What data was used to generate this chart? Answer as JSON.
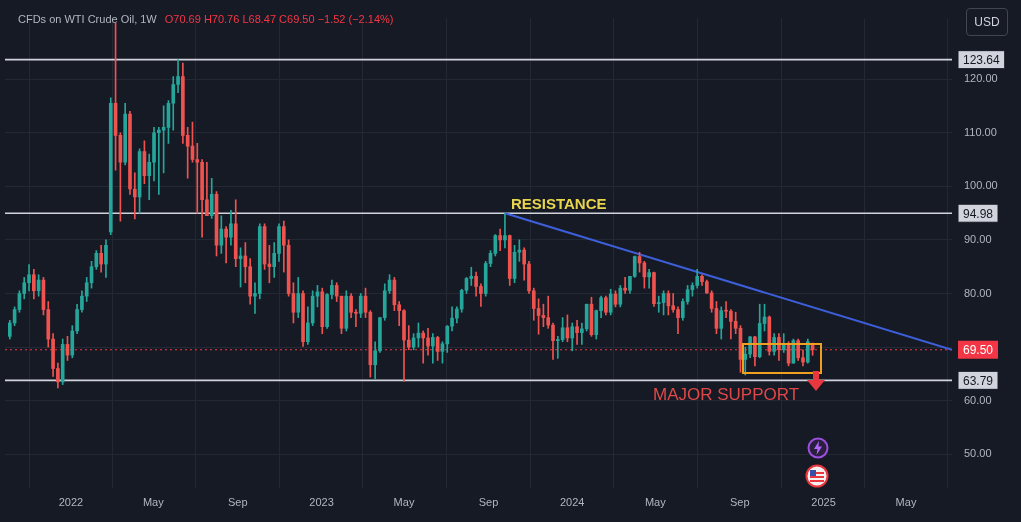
{
  "chart_data": {
    "type": "candlestick",
    "title": "CFDs on WTI Crude Oil, 1W",
    "subtitle": "O70.69 H70.76 L68.47 C69.50 −1.52 (−2.14%)",
    "ylabel": "USD",
    "x": [
      "2021-10-04",
      "2021-10-11",
      "2021-10-18",
      "2021-10-25",
      "2021-11-01",
      "2021-11-08",
      "2021-11-15",
      "2021-11-22",
      "2021-11-29",
      "2021-12-06",
      "2021-12-13",
      "2021-12-20",
      "2021-12-27",
      "2022-01-03",
      "2022-01-10",
      "2022-01-17",
      "2022-01-24",
      "2022-01-31",
      "2022-02-07",
      "2022-02-14",
      "2022-02-21",
      "2022-02-28",
      "2022-03-07",
      "2022-03-14",
      "2022-03-21",
      "2022-03-28",
      "2022-04-04",
      "2022-04-11",
      "2022-04-18",
      "2022-04-25",
      "2022-05-02",
      "2022-05-09",
      "2022-05-16",
      "2022-05-23",
      "2022-05-30",
      "2022-06-06",
      "2022-06-13",
      "2022-06-20",
      "2022-06-27",
      "2022-07-04",
      "2022-07-11",
      "2022-07-18",
      "2022-07-25",
      "2022-08-01",
      "2022-08-08",
      "2022-08-15",
      "2022-08-22",
      "2022-08-29",
      "2022-09-05",
      "2022-09-12",
      "2022-09-19",
      "2022-09-26",
      "2022-10-03",
      "2022-10-10",
      "2022-10-17",
      "2022-10-24",
      "2022-10-31",
      "2022-11-07",
      "2022-11-14",
      "2022-11-21",
      "2022-11-28",
      "2022-12-05",
      "2022-12-12",
      "2022-12-19",
      "2022-12-26",
      "2023-01-02",
      "2023-01-09",
      "2023-01-16",
      "2023-01-23",
      "2023-01-30",
      "2023-02-06",
      "2023-02-13",
      "2023-02-20",
      "2023-02-27",
      "2023-03-06",
      "2023-03-13",
      "2023-03-20",
      "2023-03-27",
      "2023-04-03",
      "2023-04-10",
      "2023-04-17",
      "2023-04-24",
      "2023-05-01",
      "2023-05-08",
      "2023-05-15",
      "2023-05-22",
      "2023-05-29",
      "2023-06-05",
      "2023-06-12",
      "2023-06-19",
      "2023-06-26",
      "2023-07-03",
      "2023-07-10",
      "2023-07-17",
      "2023-07-24",
      "2023-07-31",
      "2023-08-07",
      "2023-08-14",
      "2023-08-21",
      "2023-08-28",
      "2023-09-04",
      "2023-09-11",
      "2023-09-18",
      "2023-09-25",
      "2023-10-02",
      "2023-10-09",
      "2023-10-16",
      "2023-10-23",
      "2023-10-30",
      "2023-11-06",
      "2023-11-13",
      "2023-11-20",
      "2023-11-27",
      "2023-12-04",
      "2023-12-11",
      "2023-12-18",
      "2023-12-25",
      "2024-01-01",
      "2024-01-08",
      "2024-01-15",
      "2024-01-22",
      "2024-01-29",
      "2024-02-05",
      "2024-02-12",
      "2024-02-19",
      "2024-02-26",
      "2024-03-04",
      "2024-03-11",
      "2024-03-18",
      "2024-03-25",
      "2024-04-01",
      "2024-04-08",
      "2024-04-15",
      "2024-04-22",
      "2024-04-29",
      "2024-05-06",
      "2024-05-13",
      "2024-05-20",
      "2024-05-27",
      "2024-06-03",
      "2024-06-10",
      "2024-06-17",
      "2024-06-24",
      "2024-07-01",
      "2024-07-08",
      "2024-07-15",
      "2024-07-22",
      "2024-07-29",
      "2024-08-05",
      "2024-08-12",
      "2024-08-19",
      "2024-08-26",
      "2024-09-02",
      "2024-09-09",
      "2024-09-16",
      "2024-09-23",
      "2024-09-30",
      "2024-10-07",
      "2024-10-14",
      "2024-10-21",
      "2024-10-28",
      "2024-11-04",
      "2024-11-11",
      "2024-11-18",
      "2024-11-25",
      "2024-12-02",
      "2024-12-09",
      "2024-12-16"
    ],
    "ohlc": [
      [
        72.0,
        75.0,
        71.5,
        74.5
      ],
      [
        74.5,
        77.5,
        74.0,
        77.0
      ],
      [
        77.0,
        80.5,
        76.5,
        80.0
      ],
      [
        80.0,
        83.0,
        79.0,
        82.0
      ],
      [
        82.0,
        85.4,
        80.5,
        83.5
      ],
      [
        83.5,
        84.5,
        79.0,
        80.5
      ],
      [
        80.5,
        83.5,
        79.5,
        82.5
      ],
      [
        82.5,
        83.0,
        76.0,
        77.0
      ],
      [
        77.0,
        78.5,
        70.0,
        71.5
      ],
      [
        71.5,
        72.5,
        64.5,
        66.0
      ],
      [
        66.0,
        67.0,
        62.4,
        63.5
      ],
      [
        63.5,
        71.5,
        63.0,
        70.5
      ],
      [
        70.5,
        72.0,
        67.5,
        68.5
      ],
      [
        68.5,
        74.0,
        68.0,
        73.0
      ],
      [
        73.0,
        78.0,
        72.5,
        77.0
      ],
      [
        77.0,
        80.5,
        76.5,
        79.5
      ],
      [
        79.5,
        83.0,
        78.5,
        82.0
      ],
      [
        82.0,
        86.0,
        81.0,
        85.0
      ],
      [
        85.0,
        88.0,
        84.5,
        87.5
      ],
      [
        87.5,
        89.0,
        84.0,
        85.5
      ],
      [
        85.5,
        90.0,
        83.0,
        89.0
      ],
      [
        91.5,
        116.5,
        91.0,
        115.5
      ],
      [
        115.5,
        130.5,
        103.0,
        109.5
      ],
      [
        109.5,
        110.0,
        93.5,
        104.5
      ],
      [
        104.5,
        115.5,
        104.0,
        113.5
      ],
      [
        113.5,
        114.0,
        98.5,
        99.5
      ],
      [
        99.5,
        102.5,
        93.9,
        98.0
      ],
      [
        98.0,
        107.0,
        95.0,
        106.5
      ],
      [
        106.5,
        108.5,
        100.5,
        102.0
      ],
      [
        102.0,
        106.0,
        97.5,
        104.5
      ],
      [
        104.5,
        111.0,
        101.0,
        110.0
      ],
      [
        110.0,
        111.0,
        98.5,
        110.5
      ],
      [
        110.5,
        115.0,
        102.5,
        111.0
      ],
      [
        111.0,
        116.0,
        108.0,
        115.5
      ],
      [
        115.5,
        120.5,
        110.5,
        119.0
      ],
      [
        119.0,
        123.64,
        117.5,
        120.5
      ],
      [
        120.5,
        123.0,
        108.0,
        109.5
      ],
      [
        109.5,
        111.0,
        101.5,
        107.5
      ],
      [
        107.5,
        112.0,
        104.5,
        105.0
      ],
      [
        105.0,
        108.0,
        95.0,
        104.5
      ],
      [
        104.5,
        105.0,
        90.5,
        97.5
      ],
      [
        97.5,
        104.5,
        94.5,
        94.5
      ],
      [
        94.5,
        101.5,
        94.0,
        98.5
      ],
      [
        98.5,
        99.0,
        87.0,
        89.0
      ],
      [
        89.0,
        94.5,
        87.5,
        92.0
      ],
      [
        92.0,
        92.5,
        85.7,
        90.5
      ],
      [
        90.5,
        95.5,
        89.0,
        93.0
      ],
      [
        93.0,
        97.5,
        85.0,
        86.5
      ],
      [
        86.5,
        88.5,
        81.2,
        87.0
      ],
      [
        87.0,
        89.5,
        82.0,
        85.0
      ],
      [
        85.0,
        86.5,
        78.0,
        79.5
      ],
      [
        79.5,
        82.0,
        76.3,
        80.0
      ],
      [
        80.0,
        93.0,
        79.0,
        92.5
      ],
      [
        92.5,
        93.0,
        84.5,
        85.5
      ],
      [
        85.5,
        89.0,
        82.0,
        85.0
      ],
      [
        85.0,
        89.5,
        83.0,
        87.5
      ],
      [
        87.5,
        93.0,
        86.0,
        92.5
      ],
      [
        92.5,
        93.5,
        84.0,
        89.0
      ],
      [
        89.0,
        90.0,
        79.5,
        80.0
      ],
      [
        80.0,
        82.0,
        74.5,
        76.5
      ],
      [
        76.5,
        83.0,
        75.5,
        80.0
      ],
      [
        80.0,
        80.5,
        70.1,
        71.0
      ],
      [
        71.0,
        77.5,
        70.5,
        74.5
      ],
      [
        74.5,
        80.5,
        74.0,
        79.5
      ],
      [
        79.5,
        81.5,
        77.5,
        80.3
      ],
      [
        80.3,
        81.0,
        72.5,
        73.8
      ],
      [
        73.8,
        80.0,
        73.5,
        79.8
      ],
      [
        79.8,
        82.5,
        79.0,
        81.5
      ],
      [
        81.5,
        82.0,
        78.5,
        79.5
      ],
      [
        79.5,
        79.5,
        72.5,
        73.5
      ],
      [
        73.5,
        80.5,
        73.0,
        79.5
      ],
      [
        79.5,
        80.0,
        75.5,
        76.5
      ],
      [
        76.5,
        77.0,
        73.8,
        76.3
      ],
      [
        76.3,
        80.0,
        75.5,
        79.5
      ],
      [
        79.5,
        81.0,
        75.5,
        76.5
      ],
      [
        76.5,
        76.8,
        64.4,
        66.7
      ],
      [
        66.7,
        71.0,
        64.1,
        69.3
      ],
      [
        69.3,
        75.5,
        69.0,
        75.5
      ],
      [
        75.5,
        81.8,
        75.0,
        80.5
      ],
      [
        80.5,
        83.5,
        80.0,
        82.5
      ],
      [
        82.5,
        83.0,
        76.8,
        77.9
      ],
      [
        77.9,
        78.5,
        74.0,
        76.8
      ],
      [
        76.8,
        77.0,
        63.6,
        71.3
      ],
      [
        71.3,
        74.0,
        69.5,
        70.0
      ],
      [
        70.0,
        72.5,
        69.5,
        71.7
      ],
      [
        71.7,
        74.5,
        70.0,
        72.6
      ],
      [
        72.6,
        73.0,
        67.0,
        71.7
      ],
      [
        71.7,
        73.5,
        68.5,
        70.2
      ],
      [
        70.2,
        72.5,
        67.0,
        71.8
      ],
      [
        71.8,
        72.0,
        67.5,
        69.2
      ],
      [
        69.2,
        71.0,
        67.0,
        70.6
      ],
      [
        70.6,
        74.0,
        69.0,
        73.9
      ],
      [
        73.9,
        77.5,
        73.0,
        75.4
      ],
      [
        75.4,
        77.5,
        74.5,
        77.1
      ],
      [
        77.1,
        80.8,
        76.5,
        80.6
      ],
      [
        80.6,
        83.0,
        80.0,
        82.8
      ],
      [
        82.8,
        84.9,
        81.5,
        83.2
      ],
      [
        83.2,
        84.0,
        79.5,
        81.3
      ],
      [
        81.3,
        81.8,
        77.6,
        80.0
      ],
      [
        80.0,
        86.0,
        79.5,
        85.6
      ],
      [
        85.6,
        88.0,
        85.0,
        87.5
      ],
      [
        87.5,
        91.0,
        87.0,
        90.8
      ],
      [
        90.8,
        92.0,
        88.0,
        90.0
      ],
      [
        90.0,
        94.98,
        88.5,
        90.8
      ],
      [
        90.8,
        90.9,
        81.5,
        82.8
      ],
      [
        82.8,
        89.0,
        82.0,
        87.7
      ],
      [
        87.7,
        90.0,
        86.0,
        88.1
      ],
      [
        88.1,
        88.5,
        82.5,
        85.5
      ],
      [
        85.5,
        86.0,
        80.0,
        80.5
      ],
      [
        80.5,
        81.0,
        75.0,
        77.2
      ],
      [
        77.2,
        79.0,
        72.4,
        75.9
      ],
      [
        75.9,
        78.0,
        73.8,
        75.5
      ],
      [
        75.5,
        79.5,
        73.5,
        74.1
      ],
      [
        74.1,
        74.5,
        67.7,
        71.2
      ],
      [
        71.2,
        72.0,
        67.9,
        71.4
      ],
      [
        71.4,
        75.5,
        71.0,
        73.6
      ],
      [
        73.6,
        76.0,
        71.0,
        71.7
      ],
      [
        71.7,
        74.5,
        69.3,
        73.8
      ],
      [
        73.8,
        75.0,
        70.5,
        72.7
      ],
      [
        72.7,
        74.5,
        70.5,
        73.4
      ],
      [
        73.4,
        78.0,
        73.0,
        78.0
      ],
      [
        78.0,
        79.3,
        72.0,
        72.3
      ],
      [
        72.3,
        76.9,
        71.5,
        76.8
      ],
      [
        76.8,
        79.5,
        75.5,
        79.2
      ],
      [
        79.2,
        79.5,
        76.0,
        76.5
      ],
      [
        76.5,
        80.8,
        76.0,
        79.9
      ],
      [
        79.9,
        80.5,
        77.5,
        78.0
      ],
      [
        78.0,
        81.5,
        77.5,
        81.0
      ],
      [
        81.0,
        83.0,
        80.0,
        80.6
      ],
      [
        80.6,
        83.2,
        80.0,
        83.2
      ],
      [
        83.2,
        87.0,
        83.0,
        86.9
      ],
      [
        86.9,
        87.7,
        84.0,
        85.7
      ],
      [
        85.7,
        86.0,
        81.0,
        83.1
      ],
      [
        83.1,
        84.5,
        81.0,
        83.9
      ],
      [
        83.9,
        84.0,
        77.6,
        78.1
      ],
      [
        78.1,
        79.5,
        76.5,
        78.3
      ],
      [
        78.3,
        80.5,
        76.0,
        80.0
      ],
      [
        80.0,
        80.5,
        76.0,
        77.7
      ],
      [
        77.7,
        80.0,
        76.5,
        77.0
      ],
      [
        77.0,
        77.5,
        72.5,
        75.5
      ],
      [
        75.5,
        79.0,
        75.0,
        78.5
      ],
      [
        78.5,
        81.5,
        78.0,
        80.7
      ],
      [
        80.7,
        82.0,
        79.5,
        81.5
      ],
      [
        81.5,
        84.5,
        81.0,
        83.2
      ],
      [
        83.2,
        83.5,
        81.5,
        82.2
      ],
      [
        82.2,
        82.5,
        80.0,
        80.1
      ],
      [
        80.1,
        80.5,
        76.5,
        77.2
      ],
      [
        77.2,
        78.5,
        72.5,
        73.5
      ],
      [
        73.5,
        77.5,
        71.5,
        76.8
      ],
      [
        76.8,
        78.5,
        75.5,
        76.7
      ],
      [
        76.7,
        77.0,
        71.5,
        74.8
      ],
      [
        74.8,
        76.5,
        72.5,
        73.5
      ],
      [
        73.5,
        74.0,
        65.3,
        67.7
      ],
      [
        67.7,
        70.0,
        64.8,
        68.7
      ],
      [
        68.7,
        72.0,
        68.0,
        71.9
      ],
      [
        71.9,
        72.0,
        66.5,
        68.2
      ],
      [
        68.2,
        78.0,
        68.0,
        74.4
      ],
      [
        74.4,
        78.0,
        73.0,
        75.6
      ],
      [
        75.6,
        75.8,
        68.5,
        69.2
      ],
      [
        69.2,
        72.5,
        68.5,
        71.8
      ],
      [
        71.8,
        72.5,
        67.5,
        69.5
      ],
      [
        69.5,
        72.5,
        69.0,
        70.4
      ],
      [
        70.4,
        71.0,
        66.5,
        67.0
      ],
      [
        67.0,
        71.5,
        67.0,
        71.2
      ],
      [
        71.2,
        71.5,
        67.5,
        68.0
      ],
      [
        68.0,
        69.5,
        66.5,
        67.2
      ],
      [
        67.2,
        71.5,
        67.0,
        71.02
      ],
      [
        70.69,
        70.76,
        68.47,
        69.5
      ]
    ],
    "colors": [
      "#26a69a",
      "#26a69a",
      "#26a69a",
      "#26a69a",
      "#26a69a",
      "#ef5350",
      "#26a69a",
      "#ef5350",
      "#ef5350",
      "#ef5350",
      "#ef5350",
      "#26a69a",
      "#ef5350",
      "#26a69a",
      "#26a69a",
      "#26a69a",
      "#26a69a",
      "#26a69a",
      "#26a69a",
      "#ef5350",
      "#26a69a",
      "#26a69a",
      "#ef5350",
      "#ef5350",
      "#26a69a",
      "#ef5350",
      "#ef5350",
      "#26a69a",
      "#ef5350",
      "#26a69a",
      "#26a69a",
      "#26a69a",
      "#26a69a",
      "#26a69a",
      "#26a69a",
      "#26a69a",
      "#ef5350",
      "#ef5350",
      "#ef5350",
      "#ef5350",
      "#ef5350",
      "#ef5350",
      "#26a69a",
      "#ef5350",
      "#26a69a",
      "#ef5350",
      "#26a69a",
      "#ef5350",
      "#26a69a",
      "#ef5350",
      "#ef5350",
      "#26a69a",
      "#26a69a",
      "#ef5350",
      "#ef5350",
      "#26a69a",
      "#26a69a",
      "#ef5350",
      "#ef5350",
      "#ef5350",
      "#26a69a",
      "#ef5350",
      "#26a69a",
      "#26a69a",
      "#26a69a",
      "#ef5350",
      "#26a69a",
      "#26a69a",
      "#ef5350",
      "#ef5350",
      "#26a69a",
      "#ef5350",
      "#ef5350",
      "#26a69a",
      "#ef5350",
      "#ef5350",
      "#26a69a",
      "#26a69a",
      "#26a69a",
      "#26a69a",
      "#ef5350",
      "#ef5350",
      "#ef5350",
      "#ef5350",
      "#26a69a",
      "#26a69a",
      "#ef5350",
      "#ef5350",
      "#26a69a",
      "#ef5350",
      "#26a69a",
      "#26a69a",
      "#26a69a",
      "#26a69a",
      "#26a69a",
      "#26a69a",
      "#26a69a",
      "#ef5350",
      "#ef5350",
      "#26a69a",
      "#26a69a",
      "#26a69a",
      "#ef5350",
      "#26a69a",
      "#ef5350",
      "#26a69a",
      "#26a69a",
      "#ef5350",
      "#ef5350",
      "#ef5350",
      "#ef5350",
      "#ef5350",
      "#ef5350",
      "#ef5350",
      "#26a69a",
      "#26a69a",
      "#ef5350",
      "#26a69a",
      "#ef5350",
      "#26a69a",
      "#26a69a",
      "#ef5350",
      "#26a69a",
      "#26a69a",
      "#ef5350",
      "#26a69a",
      "#ef5350",
      "#26a69a",
      "#ef5350",
      "#26a69a",
      "#26a69a",
      "#ef5350",
      "#ef5350",
      "#26a69a",
      "#ef5350",
      "#26a69a",
      "#26a69a",
      "#ef5350",
      "#ef5350",
      "#ef5350",
      "#26a69a",
      "#26a69a",
      "#26a69a",
      "#26a69a",
      "#ef5350",
      "#ef5350",
      "#ef5350",
      "#ef5350",
      "#26a69a",
      "#ef5350",
      "#ef5350",
      "#ef5350",
      "#ef5350",
      "#26a69a",
      "#26a69a",
      "#ef5350",
      "#26a69a",
      "#26a69a",
      "#ef5350",
      "#26a69a",
      "#ef5350",
      "#26a69a",
      "#ef5350",
      "#26a69a",
      "#ef5350",
      "#ef5350",
      "#26a69a",
      "#ef5350"
    ],
    "series": [
      {
        "type": "line",
        "x": [
          "2023-09-25",
          "2025-07-07"
        ],
        "values": [
          94.98,
          69.5
        ],
        "color": "#3d5fd9"
      }
    ],
    "xlim": [
      "2021-09-27",
      "2025-07-07"
    ],
    "xticks": [
      {
        "value": "2022-01-01",
        "label": "2022"
      },
      {
        "value": "2022-05-01",
        "label": "May"
      },
      {
        "value": "2022-09-01",
        "label": "Sep"
      },
      {
        "value": "2023-01-01",
        "label": "2023"
      },
      {
        "value": "2023-05-01",
        "label": "May"
      },
      {
        "value": "2023-09-01",
        "label": "Sep"
      },
      {
        "value": "2024-01-01",
        "label": "2024"
      },
      {
        "value": "2024-05-01",
        "label": "May"
      },
      {
        "value": "2024-09-01",
        "label": "Sep"
      },
      {
        "value": "2025-01-01",
        "label": "2025"
      },
      {
        "value": "2025-05-01",
        "label": "May"
      }
    ],
    "ylim": [
      43.7,
      131.3
    ],
    "yticks": [
      {
        "value": 50,
        "label": "50.00"
      },
      {
        "value": 60,
        "label": "60.00"
      },
      {
        "value": 70,
        "label": null
      },
      {
        "value": 80,
        "label": "80.00"
      },
      {
        "value": 90,
        "label": "90.00"
      },
      {
        "value": 100,
        "label": "100.00"
      },
      {
        "value": 110,
        "label": "110.00"
      },
      {
        "value": 120,
        "label": "120.00"
      }
    ],
    "grid": true,
    "marker": "none",
    "ref_lines": [
      {
        "axis": "y",
        "value": 123.64,
        "label": "123.64",
        "color": "#d1d4dc"
      },
      {
        "axis": "y",
        "value": 94.98,
        "label": "94.98",
        "color": "#d1d4dc"
      },
      {
        "axis": "y",
        "value": 63.79,
        "label": "63.79",
        "color": "#d1d4dc"
      },
      {
        "axis": "y",
        "value": 69.5,
        "label": "69.50",
        "color": "#f23645",
        "line_style": "dotted"
      }
    ],
    "annotations": [
      {
        "text": "RESISTANCE",
        "x": "2023-09-25",
        "y": 94.98
      },
      {
        "text": "MAJOR SUPPORT",
        "x": "2024-08-12",
        "y": 63.79
      }
    ]
  }
}
